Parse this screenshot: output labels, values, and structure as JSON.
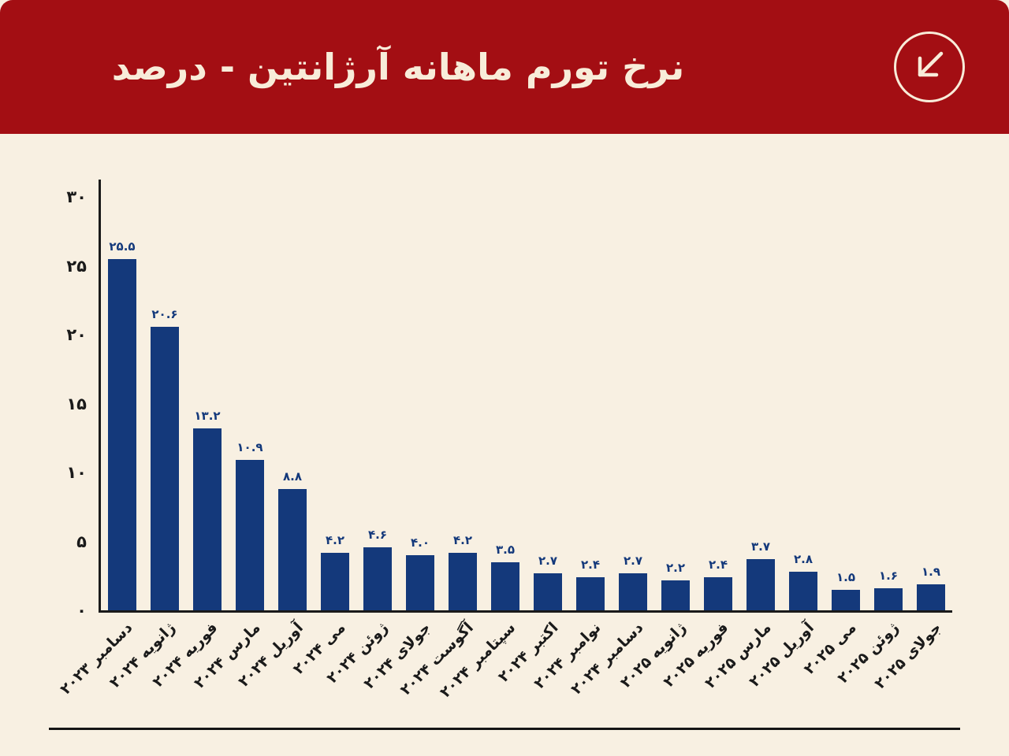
{
  "page": {
    "background_color": "#f8f0e2"
  },
  "header": {
    "title": "نرخ تورم ماهانه آرژانتین - درصد",
    "background_color": "#a30e13",
    "title_color": "#f8ecd9",
    "icon": "arrow-down-left-icon"
  },
  "chart_data": {
    "type": "bar",
    "title": "نرخ تورم ماهانه آرژانتین - درصد",
    "categories": [
      "دسامبر ۲۰۲۳",
      "ژانویه ۲۰۲۴",
      "فوریه ۲۰۲۴",
      "مارس ۲۰۲۴",
      "آوریل ۲۰۲۴",
      "می ۲۰۲۴",
      "ژوئن ۲۰۲۴",
      "جولای ۲۰۲۴",
      "آگوست ۲۰۲۴",
      "سپتامبر ۲۰۲۴",
      "اکتبر ۲۰۲۴",
      "نوامبر ۲۰۲۴",
      "دسامبر ۲۰۲۴",
      "ژانویه ۲۰۲۵",
      "فوریه ۲۰۲۵",
      "مارس ۲۰۲۵",
      "آوریل ۲۰۲۵",
      "می ۲۰۲۵",
      "ژوئن ۲۰۲۵",
      "جولای ۲۰۲۵"
    ],
    "values": [
      25.5,
      20.6,
      13.2,
      10.9,
      8.8,
      4.2,
      4.6,
      4.0,
      4.2,
      3.5,
      2.7,
      2.4,
      2.7,
      2.2,
      2.4,
      3.7,
      2.8,
      1.5,
      1.6,
      1.9
    ],
    "value_labels": [
      "۲۵.۵",
      "۲۰.۶",
      "۱۳.۲",
      "۱۰.۹",
      "۸.۸",
      "۴.۲",
      "۴.۶",
      "۴.۰",
      "۴.۲",
      "۳.۵",
      "۲.۷",
      "۲.۴",
      "۲.۷",
      "۲.۲",
      "۲.۴",
      "۳.۷",
      "۲.۸",
      "۱.۵",
      "۱.۶",
      "۱.۹"
    ],
    "y_ticks": [
      {
        "value": 0,
        "label": "۰"
      },
      {
        "value": 5,
        "label": "۵"
      },
      {
        "value": 10,
        "label": "۱۰"
      },
      {
        "value": 15,
        "label": "۱۵"
      },
      {
        "value": 20,
        "label": "۲۰"
      },
      {
        "value": 25,
        "label": "۲۵"
      },
      {
        "value": 30,
        "label": "۳۰"
      }
    ],
    "ylim": [
      0,
      31
    ],
    "xlabel": "",
    "ylabel": "",
    "grid": false,
    "legend": "none",
    "bar_color": "#14397b",
    "value_label_color": "#14397b",
    "axis_color": "#1a1a1a"
  }
}
